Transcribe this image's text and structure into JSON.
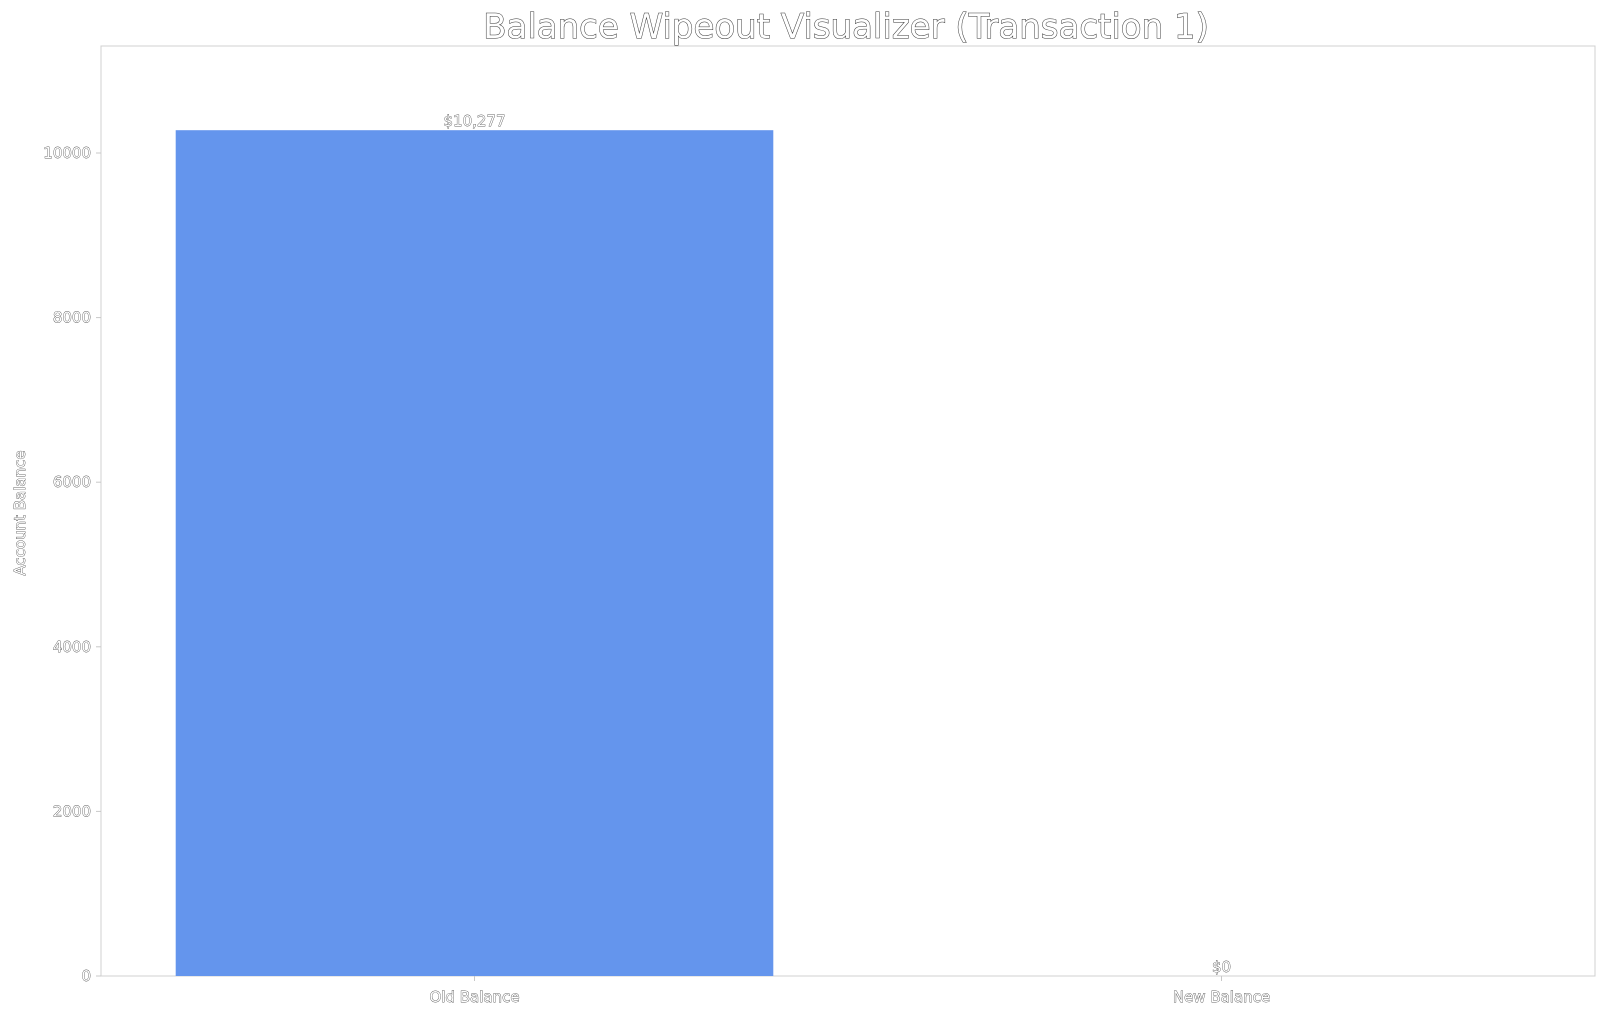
{
  "chart_data": {
    "type": "bar",
    "title": "Balance Wipeout Visualizer (Transaction 1)",
    "xlabel": "",
    "ylabel": "Account Balance",
    "categories": [
      "Old Balance",
      "New Balance"
    ],
    "values": [
      10277,
      0
    ],
    "data_labels": [
      "$10,277",
      "$0"
    ],
    "ylim": [
      0,
      11300
    ],
    "yticks": [
      0,
      2000,
      4000,
      6000,
      8000,
      10000
    ],
    "ytick_labels": [
      "0",
      "2000",
      "4000",
      "6000",
      "8000",
      "10000"
    ],
    "bar_color": "#6495ED",
    "grid": false,
    "legend": "none"
  }
}
